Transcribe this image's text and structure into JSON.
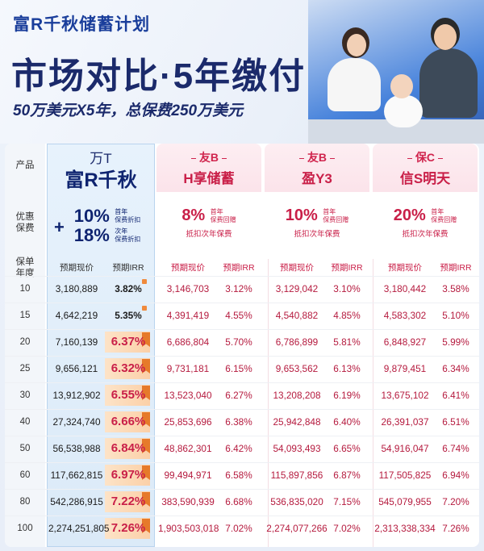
{
  "header": {
    "brand": "富R千秋储蓄计划",
    "title": "市场对比·5年缴付",
    "subtitle": "50万美元X5年，总保费250万美元"
  },
  "labels": {
    "product": "产品",
    "discount": "优惠保费",
    "year": "保单年度",
    "value_col": "预期现价",
    "irr_col": "预期IRR"
  },
  "products": [
    {
      "company": "万T",
      "name": "富R千秋",
      "discount_lines": [
        {
          "pct": "10%",
          "note1": "首年",
          "note2": "保费折扣"
        },
        {
          "pct": "18%",
          "note1": "次年",
          "note2": "保费折扣"
        }
      ]
    },
    {
      "company": "友B",
      "name": "H享储蓄",
      "pct": "8%",
      "note1": "首年",
      "note2": "保费回赠",
      "sub": "抵扣次年保费"
    },
    {
      "company": "友B",
      "name": "盈Y3",
      "pct": "10%",
      "note1": "首年",
      "note2": "保费回赠",
      "sub": "抵扣次年保费"
    },
    {
      "company": "保C",
      "name": "信S明天",
      "pct": "20%",
      "note1": "首年",
      "note2": "保费回赠",
      "sub": "抵扣次年保费"
    }
  ],
  "rows": [
    {
      "year": "10",
      "v": [
        "3,180,889",
        "3,146,703",
        "3,129,042",
        "3,180,442"
      ],
      "irr": [
        "3.82%",
        "3.12%",
        "3.10%",
        "3.58%"
      ]
    },
    {
      "year": "15",
      "v": [
        "4,642,219",
        "4,391,419",
        "4,540,882",
        "4,583,302"
      ],
      "irr": [
        "5.35%",
        "4.55%",
        "4.85%",
        "5.10%"
      ]
    },
    {
      "year": "20",
      "v": [
        "7,160,139",
        "6,686,804",
        "6,786,899",
        "6,848,927"
      ],
      "irr": [
        "6.37%",
        "5.70%",
        "5.81%",
        "5.99%"
      ]
    },
    {
      "year": "25",
      "v": [
        "9,656,121",
        "9,731,181",
        "9,653,562",
        "9,879,451"
      ],
      "irr": [
        "6.32%",
        "6.15%",
        "6.13%",
        "6.34%"
      ]
    },
    {
      "year": "30",
      "v": [
        "13,912,902",
        "13,523,040",
        "13,208,208",
        "13,675,102"
      ],
      "irr": [
        "6.55%",
        "6.27%",
        "6.19%",
        "6.41%"
      ]
    },
    {
      "year": "40",
      "v": [
        "27,324,740",
        "25,853,696",
        "25,942,848",
        "26,391,037"
      ],
      "irr": [
        "6.66%",
        "6.38%",
        "6.40%",
        "6.51%"
      ]
    },
    {
      "year": "50",
      "v": [
        "56,538,988",
        "48,862,301",
        "54,093,493",
        "54,916,047"
      ],
      "irr": [
        "6.84%",
        "6.42%",
        "6.65%",
        "6.74%"
      ]
    },
    {
      "year": "60",
      "v": [
        "117,662,815",
        "99,494,971",
        "115,897,856",
        "117,505,825"
      ],
      "irr": [
        "6.97%",
        "6.58%",
        "6.87%",
        "6.94%"
      ]
    },
    {
      "year": "80",
      "v": [
        "542,286,915",
        "383,590,939",
        "536,835,020",
        "545,079,955"
      ],
      "irr": [
        "7.22%",
        "6.68%",
        "7.15%",
        "7.20%"
      ]
    },
    {
      "year": "100",
      "v": [
        "2,274,251,805",
        "1,903,503,018",
        "2,274,077,266",
        "2,313,338,334"
      ],
      "irr": [
        "7.26%",
        "7.02%",
        "7.02%",
        "7.26%"
      ]
    }
  ],
  "colors": {
    "brand": "#1b2a6b",
    "competitor": "#c91f48",
    "highlight": "#fbd0a8"
  }
}
